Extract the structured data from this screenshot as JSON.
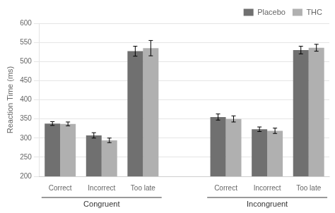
{
  "chart_data": {
    "type": "bar",
    "ylabel": "Reaction Time (ms)",
    "groups": [
      {
        "label": "Congruent",
        "categories": [
          "Correct",
          "Incorrect",
          "Too late"
        ]
      },
      {
        "label": "Incongruent",
        "categories": [
          "Correct",
          "Incorrect",
          "Too late"
        ]
      }
    ],
    "series": [
      {
        "name": "Placebo",
        "color": "#707070",
        "values": [
          338,
          307,
          527,
          355,
          323,
          530
        ],
        "errors": [
          5,
          7,
          13,
          8,
          6,
          10
        ]
      },
      {
        "name": "THC",
        "color": "#b0b0b0",
        "values": [
          337,
          294,
          535,
          350,
          319,
          536
        ],
        "errors": [
          5,
          6,
          20,
          8,
          7,
          9
        ]
      }
    ],
    "ylim": [
      200,
      600
    ],
    "yticks": [
      200,
      250,
      300,
      350,
      400,
      450,
      500,
      550,
      600
    ],
    "grid": true,
    "legend": "upper right"
  }
}
